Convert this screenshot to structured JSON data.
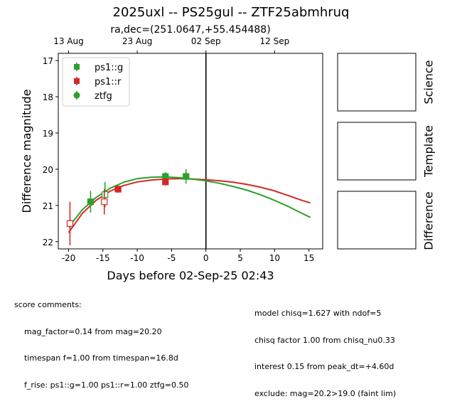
{
  "figure": {
    "title": "2025uxl -- PS25gul -- ZTF25abmhruq",
    "subtitle": "ra,dec=(251.0647,+55.454488)"
  },
  "chart_data": {
    "type": "scatter",
    "xlabel": "Days before 02-Sep-25 02:43",
    "ylabel": "Difference magnitude",
    "xlim": [
      -21.5,
      17.0
    ],
    "ylim": [
      22.2,
      16.8
    ],
    "y_inverted": true,
    "x_ticks": [
      -20,
      -15,
      -10,
      -5,
      0,
      5,
      10,
      15
    ],
    "y_ticks": [
      17,
      18,
      19,
      20,
      21,
      22
    ],
    "top_axis_ticks": [
      {
        "x": -20.0,
        "label": "13 Aug"
      },
      {
        "x": -10.0,
        "label": "23 Aug"
      },
      {
        "x": 0.0,
        "label": "02 Sep"
      },
      {
        "x": 10.0,
        "label": "12 Sep"
      }
    ],
    "vline_x": 0,
    "legend_position": "upper left",
    "grid": false,
    "series": [
      {
        "name": "ps1::g",
        "color": "#2ca02c",
        "marker": "square",
        "points": [
          {
            "x": -16.8,
            "y": 20.9,
            "err": 0.3,
            "filled": true
          },
          {
            "x": -14.7,
            "y": 20.7,
            "err": 0.35,
            "filled": false
          },
          {
            "x": -12.8,
            "y": 20.55,
            "err": 0.1,
            "filled": true
          },
          {
            "x": -5.9,
            "y": 20.2,
            "err": 0.12,
            "filled": true
          },
          {
            "x": -2.9,
            "y": 20.2,
            "err": 0.2,
            "filled": true
          }
        ],
        "model": [
          {
            "x": -20.0,
            "y": 21.6
          },
          {
            "x": -18.0,
            "y": 21.12
          },
          {
            "x": -16.0,
            "y": 20.78
          },
          {
            "x": -14.0,
            "y": 20.53
          },
          {
            "x": -12.0,
            "y": 20.36
          },
          {
            "x": -10.0,
            "y": 20.26
          },
          {
            "x": -8.0,
            "y": 20.22
          },
          {
            "x": -6.0,
            "y": 20.21
          },
          {
            "x": -4.0,
            "y": 20.23
          },
          {
            "x": -2.0,
            "y": 20.27
          },
          {
            "x": 0.0,
            "y": 20.32
          },
          {
            "x": 2.0,
            "y": 20.39
          },
          {
            "x": 4.0,
            "y": 20.48
          },
          {
            "x": 6.0,
            "y": 20.58
          },
          {
            "x": 8.0,
            "y": 20.71
          },
          {
            "x": 10.0,
            "y": 20.86
          },
          {
            "x": 12.0,
            "y": 21.03
          },
          {
            "x": 14.0,
            "y": 21.22
          },
          {
            "x": 15.2,
            "y": 21.33
          }
        ]
      },
      {
        "name": "ps1::r",
        "color": "#d62728",
        "marker": "square",
        "points": [
          {
            "x": -19.8,
            "y": 21.5,
            "err": 0.6,
            "filled": false
          },
          {
            "x": -14.8,
            "y": 20.9,
            "err": 0.35,
            "filled": false
          },
          {
            "x": -12.8,
            "y": 20.55,
            "err": 0.08,
            "filled": true
          },
          {
            "x": -5.9,
            "y": 20.35,
            "err": 0.1,
            "filled": true
          }
        ],
        "model": [
          {
            "x": -20.0,
            "y": 21.75
          },
          {
            "x": -18.0,
            "y": 21.22
          },
          {
            "x": -16.0,
            "y": 20.86
          },
          {
            "x": -14.0,
            "y": 20.61
          },
          {
            "x": -12.0,
            "y": 20.45
          },
          {
            "x": -10.0,
            "y": 20.35
          },
          {
            "x": -8.0,
            "y": 20.3
          },
          {
            "x": -6.0,
            "y": 20.27
          },
          {
            "x": -4.0,
            "y": 20.26
          },
          {
            "x": -2.0,
            "y": 20.27
          },
          {
            "x": 0.0,
            "y": 20.29
          },
          {
            "x": 2.0,
            "y": 20.32
          },
          {
            "x": 4.0,
            "y": 20.36
          },
          {
            "x": 6.0,
            "y": 20.42
          },
          {
            "x": 8.0,
            "y": 20.5
          },
          {
            "x": 10.0,
            "y": 20.6
          },
          {
            "x": 12.0,
            "y": 20.73
          },
          {
            "x": 14.0,
            "y": 20.86
          },
          {
            "x": 15.2,
            "y": 20.93
          }
        ]
      },
      {
        "name": "ztfg",
        "color": "#2ca02c",
        "marker": "circle",
        "points": []
      }
    ]
  },
  "panels": [
    "Science",
    "Template",
    "Difference"
  ],
  "comments": {
    "left": [
      "score comments:",
      "    mag_factor=0.14 from mag=20.20",
      "    timespan f=1.00 from timespan=16.8d",
      "    f_rise: ps1::g=1.00 ps1::r=1.00 ztfg=0.50"
    ],
    "right": [
      "model chisq=1.627 with ndof=5",
      "chisq factor 1.00 from chisq_nu0.33",
      "interest 0.15 from peak_dt=+4.60d",
      "exclude: mag=20.2>19.0 (faint lim)"
    ]
  }
}
